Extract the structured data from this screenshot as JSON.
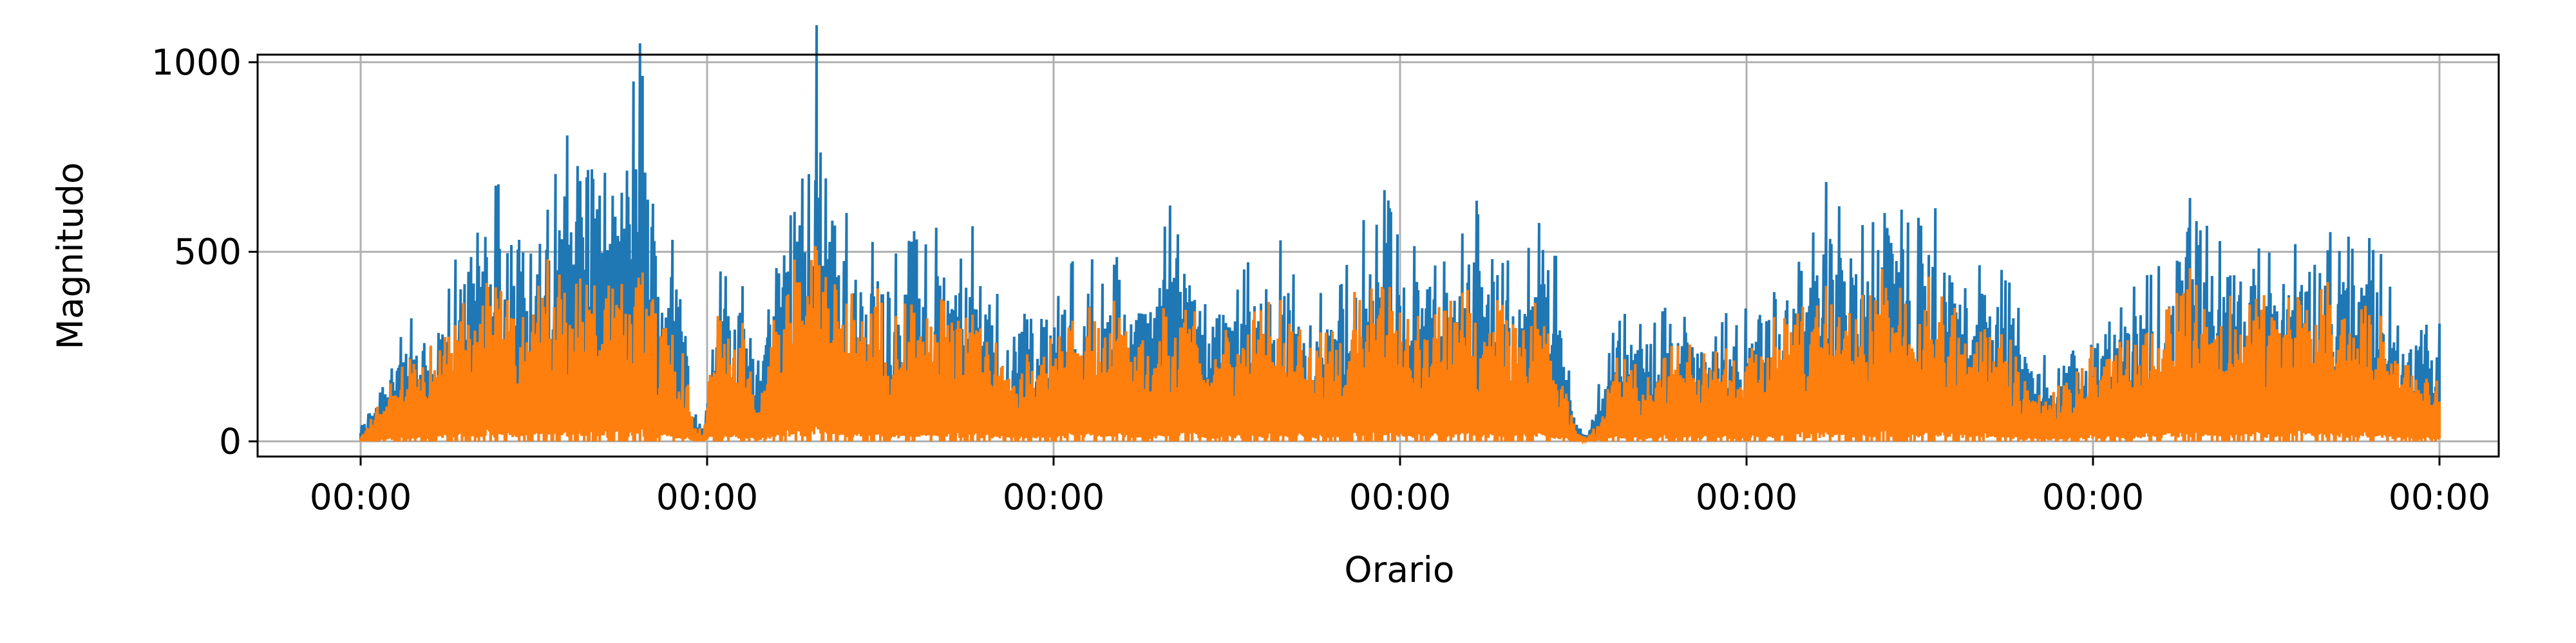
{
  "chart_data": {
    "type": "line",
    "title": "",
    "xlabel": "Orario",
    "ylabel": "Magnitudo",
    "ylim": [
      -40,
      1020
    ],
    "y_ticks": [
      0,
      500,
      1000
    ],
    "x_tick_labels": [
      "00:00",
      "00:00",
      "00:00",
      "00:00",
      "00:00",
      "00:00",
      "00:00"
    ],
    "grid": true,
    "legend": "none",
    "colors": {
      "series_1": "#1f77b4",
      "series_2": "#ff7f0e",
      "grid": "#b0b0b0",
      "axes": "#000000"
    },
    "series_envelope_points": [
      [
        0.0,
        30,
        10
      ],
      [
        0.03,
        250,
        170
      ],
      [
        0.08,
        350,
        360
      ],
      [
        0.1,
        470,
        370
      ],
      [
        0.11,
        680,
        380
      ],
      [
        0.13,
        620,
        450
      ],
      [
        0.15,
        590,
        400
      ],
      [
        0.18,
        600,
        470
      ],
      [
        0.2,
        820,
        420
      ],
      [
        0.22,
        840,
        450
      ],
      [
        0.24,
        620,
        400
      ],
      [
        0.27,
        940,
        470
      ],
      [
        0.29,
        510,
        350
      ],
      [
        0.3,
        490,
        400
      ],
      [
        0.31,
        400,
        250
      ],
      [
        0.32,
        100,
        60
      ],
      [
        0.33,
        30,
        20
      ],
      [
        0.34,
        390,
        330
      ],
      [
        0.35,
        420,
        350
      ],
      [
        0.37,
        370,
        300
      ],
      [
        0.38,
        150,
        80
      ],
      [
        0.4,
        530,
        360
      ],
      [
        0.41,
        620,
        430
      ],
      [
        0.43,
        880,
        580
      ],
      [
        0.44,
        980,
        490
      ],
      [
        0.46,
        580,
        400
      ],
      [
        0.48,
        520,
        460
      ],
      [
        0.5,
        480,
        400
      ],
      [
        0.52,
        440,
        330
      ],
      [
        0.54,
        510,
        440
      ],
      [
        0.56,
        500,
        460
      ],
      [
        0.57,
        420,
        340
      ],
      [
        0.59,
        520,
        370
      ],
      [
        0.6,
        480,
        350
      ],
      [
        0.62,
        300,
        220
      ],
      [
        0.64,
        330,
        290
      ],
      [
        0.65,
        250,
        200
      ],
      [
        0.67,
        380,
        340
      ],
      [
        0.7,
        450,
        350
      ],
      [
        0.72,
        480,
        390
      ],
      [
        0.74,
        370,
        300
      ],
      [
        0.76,
        390,
        250
      ],
      [
        0.78,
        580,
        390
      ],
      [
        0.8,
        450,
        370
      ],
      [
        0.82,
        380,
        290
      ],
      [
        0.84,
        390,
        330
      ],
      [
        0.86,
        440,
        330
      ],
      [
        0.88,
        480,
        400
      ],
      [
        0.9,
        420,
        320
      ],
      [
        0.92,
        350,
        270
      ],
      [
        0.94,
        380,
        340
      ],
      [
        0.96,
        470,
        420
      ],
      [
        0.98,
        660,
        480
      ],
      [
        1.0,
        450,
        390
      ],
      [
        1.02,
        480,
        330
      ],
      [
        1.04,
        430,
        360
      ],
      [
        1.06,
        520,
        400
      ],
      [
        1.08,
        590,
        380
      ],
      [
        1.1,
        460,
        380
      ],
      [
        1.12,
        420,
        300
      ],
      [
        1.14,
        590,
        410
      ],
      [
        1.16,
        270,
        170
      ],
      [
        1.17,
        50,
        20
      ],
      [
        1.18,
        20,
        10
      ],
      [
        1.19,
        120,
        50
      ],
      [
        1.21,
        320,
        230
      ],
      [
        1.23,
        280,
        200
      ],
      [
        1.25,
        310,
        240
      ],
      [
        1.27,
        380,
        270
      ],
      [
        1.29,
        330,
        300
      ],
      [
        1.31,
        310,
        250
      ],
      [
        1.33,
        290,
        260
      ],
      [
        1.35,
        410,
        300
      ],
      [
        1.37,
        470,
        340
      ],
      [
        1.39,
        420,
        350
      ],
      [
        1.41,
        600,
        430
      ],
      [
        1.43,
        560,
        410
      ],
      [
        1.45,
        500,
        430
      ],
      [
        1.47,
        730,
        500
      ],
      [
        1.49,
        520,
        410
      ],
      [
        1.51,
        580,
        430
      ],
      [
        1.53,
        490,
        390
      ],
      [
        1.55,
        450,
        380
      ],
      [
        1.57,
        420,
        340
      ],
      [
        1.59,
        360,
        280
      ],
      [
        1.6,
        260,
        160
      ],
      [
        1.62,
        200,
        110
      ],
      [
        1.64,
        240,
        160
      ],
      [
        1.66,
        310,
        230
      ],
      [
        1.68,
        360,
        260
      ],
      [
        1.7,
        340,
        280
      ],
      [
        1.72,
        410,
        340
      ],
      [
        1.74,
        480,
        370
      ],
      [
        1.76,
        740,
        500
      ],
      [
        1.78,
        520,
        400
      ],
      [
        1.8,
        490,
        380
      ],
      [
        1.82,
        520,
        410
      ],
      [
        1.84,
        470,
        400
      ],
      [
        1.86,
        500,
        400
      ],
      [
        1.88,
        520,
        430
      ],
      [
        1.9,
        490,
        430
      ],
      [
        1.92,
        500,
        380
      ],
      [
        1.94,
        480,
        350
      ],
      [
        1.96,
        300,
        220
      ],
      [
        1.98,
        280,
        180
      ],
      [
        2.0,
        280,
        180
      ]
    ]
  }
}
